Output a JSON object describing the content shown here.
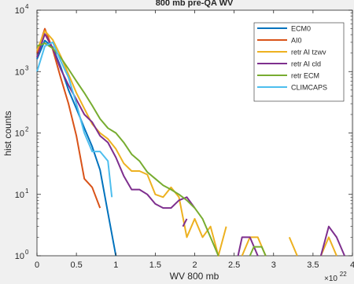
{
  "chart_data": {
    "type": "line",
    "title": "800 mb pre-QA WV",
    "xlabel": "WV 800 mb",
    "ylabel": "hist counts",
    "x_multiplier": "×10",
    "x_multiplier_exp": "22",
    "xlim": [
      0,
      4
    ],
    "ylim": [
      1,
      10000
    ],
    "yscale": "log",
    "grid": false,
    "legend_position": "top-right",
    "xticks": [
      0,
      0.5,
      1,
      1.5,
      2,
      2.5,
      3,
      3.5,
      4
    ],
    "xtick_labels": [
      "0",
      "0.5",
      "1",
      "1.5",
      "2",
      "2.5",
      "3",
      "3.5",
      "4"
    ],
    "yticks": [
      1,
      10,
      100,
      1000,
      10000
    ],
    "ytick_bases": [
      "10",
      "10",
      "10",
      "10",
      "10"
    ],
    "ytick_exps": [
      "0",
      "1",
      "2",
      "3",
      "4"
    ],
    "series": [
      {
        "name": "ECM0",
        "color": "#0072BD",
        "points": [
          [
            0,
            1600
          ],
          [
            0.1,
            3200
          ],
          [
            0.2,
            2500
          ],
          [
            0.3,
            1200
          ],
          [
            0.4,
            500
          ],
          [
            0.5,
            250
          ],
          [
            0.6,
            120
          ],
          [
            0.7,
            60
          ],
          [
            0.8,
            25
          ],
          [
            0.9,
            5
          ],
          [
            1.0,
            1
          ]
        ]
      },
      {
        "name": "AI0",
        "color": "#D95319",
        "points": [
          [
            0,
            2000
          ],
          [
            0.1,
            5000
          ],
          [
            0.2,
            2300
          ],
          [
            0.3,
            800
          ],
          [
            0.4,
            300
          ],
          [
            0.5,
            90
          ],
          [
            0.6,
            18
          ],
          [
            0.7,
            13
          ],
          [
            0.8,
            6
          ]
        ]
      },
      {
        "name": "retr AI tzwv",
        "color": "#EDB120",
        "points": [
          [
            0,
            2200
          ],
          [
            0.1,
            4600
          ],
          [
            0.2,
            3300
          ],
          [
            0.3,
            1800
          ],
          [
            0.4,
            900
          ],
          [
            0.5,
            450
          ],
          [
            0.6,
            250
          ],
          [
            0.7,
            140
          ],
          [
            0.8,
            100
          ],
          [
            0.9,
            80
          ],
          [
            1.0,
            55
          ],
          [
            1.1,
            32
          ],
          [
            1.2,
            24
          ],
          [
            1.3,
            24
          ],
          [
            1.4,
            21
          ],
          [
            1.5,
            10
          ],
          [
            1.6,
            9
          ],
          [
            1.7,
            13
          ],
          [
            1.8,
            9
          ],
          [
            1.9,
            2
          ],
          [
            2.0,
            4
          ],
          [
            2.1,
            2
          ],
          [
            2.2,
            3
          ],
          [
            2.3,
            1
          ],
          [
            2.4,
            3
          ]
        ],
        "segments": [
          [
            [
              2.6,
              1
            ],
            [
              2.7,
              2
            ],
            [
              2.8,
              2
            ],
            [
              2.9,
              1
            ]
          ],
          [
            [
              3.2,
              2
            ],
            [
              3.3,
              1
            ]
          ],
          [
            [
              3.6,
              1
            ],
            [
              3.7,
              2
            ],
            [
              3.8,
              1
            ]
          ]
        ]
      },
      {
        "name": "retr AI cld",
        "color": "#7E2F8E",
        "points": [
          [
            0,
            1700
          ],
          [
            0.1,
            4100
          ],
          [
            0.2,
            2400
          ],
          [
            0.3,
            1100
          ],
          [
            0.4,
            600
          ],
          [
            0.5,
            350
          ],
          [
            0.6,
            200
          ],
          [
            0.7,
            150
          ],
          [
            0.8,
            90
          ],
          [
            0.9,
            70
          ],
          [
            1.0,
            40
          ],
          [
            1.1,
            20
          ],
          [
            1.2,
            12
          ],
          [
            1.3,
            12
          ],
          [
            1.4,
            10
          ],
          [
            1.5,
            7
          ],
          [
            1.6,
            6
          ],
          [
            1.7,
            6
          ],
          [
            1.8,
            8
          ],
          [
            1.9,
            9
          ],
          [
            2.0,
            6
          ]
        ],
        "segments": [
          [
            [
              1.85,
              3
            ],
            [
              1.9,
              4
            ]
          ],
          [
            [
              2.55,
              1
            ],
            [
              2.6,
              2
            ],
            [
              2.7,
              2
            ],
            [
              2.8,
              1
            ]
          ],
          [
            [
              3.6,
              1
            ],
            [
              3.7,
              3
            ],
            [
              3.8,
              2
            ],
            [
              3.9,
              1
            ]
          ]
        ]
      },
      {
        "name": "retr ECM",
        "color": "#77AC30",
        "points": [
          [
            0,
            2600
          ],
          [
            0.1,
            2900
          ],
          [
            0.2,
            2400
          ],
          [
            0.3,
            1700
          ],
          [
            0.4,
            1100
          ],
          [
            0.5,
            700
          ],
          [
            0.6,
            450
          ],
          [
            0.7,
            280
          ],
          [
            0.8,
            170
          ],
          [
            0.9,
            120
          ],
          [
            1.0,
            100
          ],
          [
            1.1,
            70
          ],
          [
            1.2,
            45
          ],
          [
            1.3,
            35
          ],
          [
            1.4,
            23
          ],
          [
            1.5,
            18
          ],
          [
            1.6,
            14
          ],
          [
            1.7,
            12
          ],
          [
            1.8,
            10
          ],
          [
            1.9,
            8
          ],
          [
            2.0,
            6
          ],
          [
            2.1,
            4
          ],
          [
            2.2,
            2
          ],
          [
            2.3,
            1
          ]
        ],
        "segments": [
          [
            [
              2.7,
              1
            ],
            [
              2.75,
              1.4
            ],
            [
              2.85,
              1.4
            ],
            [
              2.9,
              1
            ]
          ]
        ]
      },
      {
        "name": "CLIMCAPS",
        "color": "#4DBEEE",
        "points": [
          [
            0,
            1000
          ],
          [
            0.1,
            2600
          ],
          [
            0.2,
            3000
          ],
          [
            0.3,
            1500
          ],
          [
            0.4,
            800
          ],
          [
            0.5,
            300
          ],
          [
            0.6,
            100
          ],
          [
            0.7,
            50
          ],
          [
            0.8,
            50
          ],
          [
            0.9,
            35
          ],
          [
            0.95,
            9
          ]
        ]
      }
    ]
  }
}
